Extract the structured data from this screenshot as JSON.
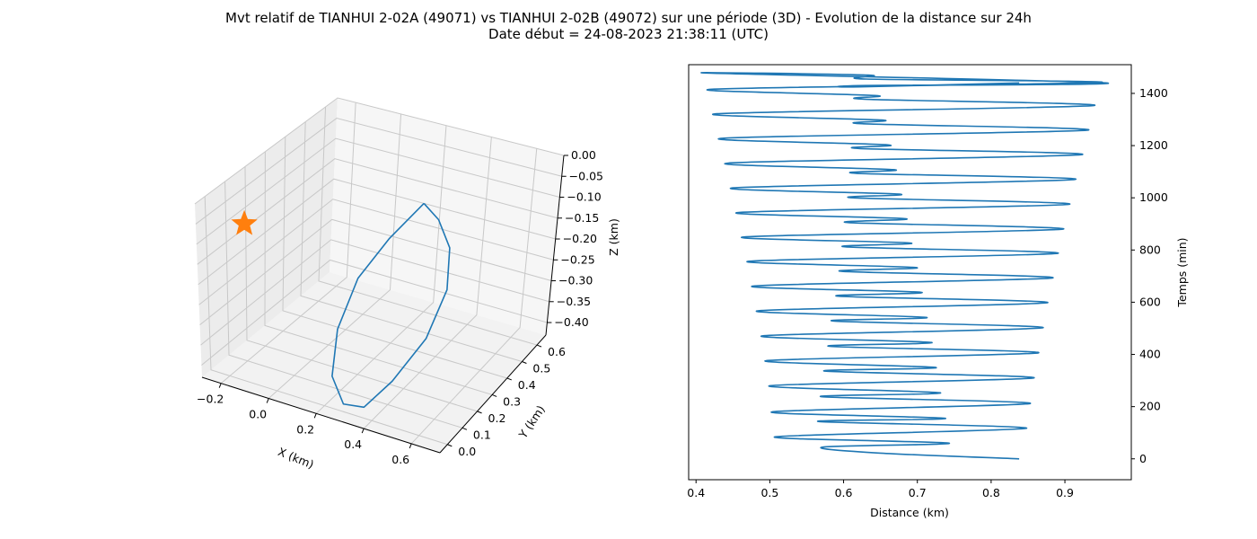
{
  "title": {
    "line1": "Mvt relatif de TIANHUI 2-02A (49071) vs TIANHUI 2-02B (49072) sur une période (3D) - Evolution de la distance sur 24h",
    "line2": "Date début = 24-08-2023 21:38:11 (UTC)"
  },
  "colors": {
    "series": "#1f77b4",
    "marker": "#ff7f0e"
  },
  "chart_data": [
    {
      "type": "line3d",
      "xlabel": "X (km)",
      "ylabel": "Y (km)",
      "zlabel": "Z (km)",
      "x_ticks": [
        "−0.2",
        "0.0",
        "0.2",
        "0.4",
        "0.6"
      ],
      "y_ticks": [
        "0.0",
        "0.1",
        "0.2",
        "0.3",
        "0.4",
        "0.5",
        "0.6"
      ],
      "z_ticks": [
        "0.00",
        "−0.05",
        "−0.10",
        "−0.15",
        "−0.20",
        "−0.25",
        "−0.30",
        "−0.35",
        "−0.40"
      ],
      "xlim": [
        -0.28,
        0.72
      ],
      "ylim": [
        -0.05,
        0.66
      ],
      "zlim": [
        -0.43,
        0.0
      ],
      "grid": true,
      "series": [
        {
          "points": [
            [
              0.33,
              0.38,
              -0.05
            ],
            [
              0.43,
              0.33,
              -0.05
            ],
            [
              0.53,
              0.26,
              -0.07
            ],
            [
              0.58,
              0.18,
              -0.13
            ],
            [
              0.56,
              0.09,
              -0.22
            ],
            [
              0.47,
              0.02,
              -0.32
            ],
            [
              0.38,
              -0.02,
              -0.39
            ],
            [
              0.28,
              0.0,
              -0.41
            ],
            [
              0.19,
              0.06,
              -0.38
            ],
            [
              0.14,
              0.16,
              -0.31
            ],
            [
              0.15,
              0.26,
              -0.22
            ],
            [
              0.22,
              0.34,
              -0.14
            ],
            [
              0.33,
              0.38,
              -0.05
            ]
          ]
        }
      ],
      "marker": {
        "type": "star",
        "x": -0.22,
        "y": 0.12,
        "z": -0.1
      }
    },
    {
      "type": "line",
      "xlabel": "Distance (km)",
      "ylabel": "Temps (min)",
      "xlim": [
        0.39,
        0.99
      ],
      "ylim": [
        -80,
        1510
      ],
      "x_ticks": [
        0.4,
        0.5,
        0.6,
        0.7,
        0.8,
        0.9
      ],
      "y_ticks": [
        0,
        200,
        400,
        600,
        800,
        1000,
        1200,
        1400
      ],
      "y_axis_side": "right",
      "grid": false,
      "series": [
        {
          "x": [
            0.838,
            0.65,
            0.572,
            0.743,
            0.507,
            0.848,
            0.566,
            0.738,
            0.503,
            0.853,
            0.57,
            0.731,
            0.5,
            0.858,
            0.575,
            0.725,
            0.495,
            0.864,
            0.581,
            0.719,
            0.49,
            0.87,
            0.586,
            0.712,
            0.484,
            0.876,
            0.593,
            0.705,
            0.478,
            0.883,
            0.598,
            0.698,
            0.472,
            0.89,
            0.603,
            0.69,
            0.465,
            0.897,
            0.607,
            0.683,
            0.458,
            0.905,
            0.613,
            0.675,
            0.451,
            0.913,
            0.617,
            0.667,
            0.444,
            0.922,
            0.621,
            0.659,
            0.436,
            0.93,
            0.625,
            0.651,
            0.429,
            0.938,
            0.628,
            0.642,
            0.422,
            0.948,
            0.631,
            0.633,
            0.415,
            0.956,
            0.63,
            0.622,
            0.838
          ],
          "y": [
            0,
            22,
            45,
            60,
            84,
            117,
            143,
            155,
            180,
            212,
            238,
            253,
            280,
            310,
            336,
            350,
            376,
            406,
            431,
            446,
            471,
            502,
            528,
            542,
            567,
            598,
            623,
            638,
            662,
            693,
            718,
            733,
            757,
            787,
            812,
            827,
            850,
            880,
            905,
            920,
            944,
            975,
            1000,
            1014,
            1038,
            1070,
            1094,
            1108,
            1133,
            1165,
            1189,
            1203,
            1228,
            1259,
            1284,
            1298,
            1322,
            1353,
            1378,
            1392,
            1416,
            1442,
            1455,
            1470,
            1478,
            1440,
            1430,
            1425,
            1440
          ]
        }
      ]
    }
  ]
}
